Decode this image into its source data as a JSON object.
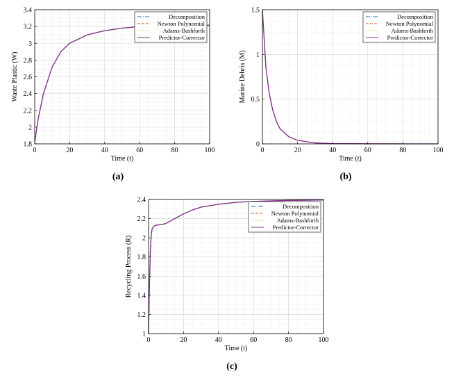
{
  "charts": [
    {
      "id": "a",
      "panel_label": "(a)",
      "xlabel": "Time (t)",
      "ylabel": "Waste Plastic (W)",
      "xticks": [
        "0",
        "20",
        "40",
        "60",
        "80",
        "100"
      ],
      "yticks": [
        "1.8",
        "2",
        "2.2",
        "2.4",
        "2.6",
        "2.8",
        "3",
        "3.2",
        "3.4"
      ]
    },
    {
      "id": "b",
      "panel_label": "(b)",
      "xlabel": "Time (t)",
      "ylabel": "Marine Debris (M)",
      "xticks": [
        "0",
        "20",
        "40",
        "60",
        "80",
        "100"
      ],
      "yticks": [
        "0",
        "0.5",
        "1",
        "1.5"
      ]
    },
    {
      "id": "c",
      "panel_label": "(c)",
      "xlabel": "Time (t)",
      "ylabel": "Recycling Process (R)",
      "xticks": [
        "0",
        "20",
        "40",
        "60",
        "80",
        "100"
      ],
      "yticks": [
        "1",
        "1.2",
        "1.4",
        "1.6",
        "1.8",
        "2",
        "2.2",
        "2.4"
      ]
    }
  ],
  "legend": [
    {
      "name": "Decomposition",
      "color": "#0072BD",
      "dash": "6,2,1,2"
    },
    {
      "name": "Newton Polynomial",
      "color": "#D95319",
      "dash": "4,2"
    },
    {
      "name": "Adams-Bashforth",
      "color": "#EDB120",
      "dash": "1,1.5"
    },
    {
      "name": "Predictor-Corrector",
      "color": "#7E2F8E",
      "dash": ""
    }
  ],
  "chart_data": [
    {
      "type": "line",
      "xlabel": "Time (t)",
      "ylabel": "Waste Plastic (W)",
      "xlim": [
        0,
        100
      ],
      "ylim": [
        1.8,
        3.4
      ],
      "grid": true,
      "legend_position": "top-right",
      "x": [
        0,
        2,
        5,
        10,
        15,
        20,
        30,
        40,
        50,
        60,
        70,
        80,
        90,
        100
      ],
      "series": [
        {
          "name": "Decomposition",
          "values": [
            1.82,
            2.1,
            2.4,
            2.72,
            2.9,
            3.0,
            3.1,
            3.15,
            3.18,
            3.2,
            3.205,
            3.21,
            3.212,
            3.215
          ]
        },
        {
          "name": "Newton Polynomial",
          "values": [
            1.82,
            2.1,
            2.4,
            2.72,
            2.9,
            3.0,
            3.1,
            3.15,
            3.18,
            3.2,
            3.205,
            3.21,
            3.212,
            3.215
          ]
        },
        {
          "name": "Adams-Bashforth",
          "values": [
            1.82,
            2.1,
            2.4,
            2.72,
            2.9,
            3.0,
            3.1,
            3.15,
            3.18,
            3.2,
            3.205,
            3.21,
            3.212,
            3.215
          ]
        },
        {
          "name": "Predictor-Corrector",
          "values": [
            1.82,
            2.1,
            2.4,
            2.72,
            2.9,
            3.0,
            3.1,
            3.15,
            3.18,
            3.2,
            3.205,
            3.21,
            3.212,
            3.215
          ]
        }
      ]
    },
    {
      "type": "line",
      "xlabel": "Time (t)",
      "ylabel": "Marine Debris (M)",
      "xlim": [
        0,
        100
      ],
      "ylim": [
        0,
        1.5
      ],
      "grid": true,
      "legend_position": "top-right",
      "x": [
        0,
        2,
        4,
        6,
        8,
        10,
        15,
        20,
        30,
        40,
        60,
        80,
        100
      ],
      "series": [
        {
          "name": "Decomposition",
          "values": [
            1.5,
            0.85,
            0.55,
            0.37,
            0.25,
            0.17,
            0.08,
            0.04,
            0.01,
            0.003,
            0.0005,
            0.0001,
            0.0
          ]
        },
        {
          "name": "Newton Polynomial",
          "values": [
            1.5,
            0.85,
            0.55,
            0.37,
            0.25,
            0.17,
            0.08,
            0.04,
            0.01,
            0.003,
            0.0005,
            0.0001,
            0.0
          ]
        },
        {
          "name": "Adams-Bashforth",
          "values": [
            1.5,
            0.85,
            0.55,
            0.37,
            0.25,
            0.17,
            0.08,
            0.04,
            0.01,
            0.003,
            0.0005,
            0.0001,
            0.0
          ]
        },
        {
          "name": "Predictor-Corrector",
          "values": [
            1.5,
            0.85,
            0.55,
            0.37,
            0.25,
            0.17,
            0.08,
            0.04,
            0.01,
            0.003,
            0.0005,
            0.0001,
            0.0
          ]
        }
      ]
    },
    {
      "type": "line",
      "xlabel": "Time (t)",
      "ylabel": "Recycling Process (R)",
      "xlim": [
        0,
        100
      ],
      "ylim": [
        1,
        2.4
      ],
      "grid": true,
      "legend_position": "top-right",
      "x": [
        0,
        0.5,
        1,
        1.5,
        2,
        3,
        4,
        6,
        8,
        10,
        12,
        15,
        20,
        25,
        30,
        40,
        50,
        60,
        70,
        80,
        90,
        100
      ],
      "series": [
        {
          "name": "Decomposition",
          "values": [
            1.0,
            1.5,
            1.85,
            2.02,
            2.09,
            2.12,
            2.13,
            2.135,
            2.14,
            2.15,
            2.17,
            2.2,
            2.25,
            2.29,
            2.32,
            2.35,
            2.37,
            2.38,
            2.385,
            2.39,
            2.392,
            2.394
          ]
        },
        {
          "name": "Newton Polynomial",
          "values": [
            1.0,
            1.5,
            1.85,
            2.02,
            2.09,
            2.12,
            2.13,
            2.135,
            2.14,
            2.15,
            2.17,
            2.2,
            2.25,
            2.29,
            2.32,
            2.35,
            2.37,
            2.38,
            2.385,
            2.39,
            2.392,
            2.394
          ]
        },
        {
          "name": "Adams-Bashforth",
          "values": [
            1.0,
            1.5,
            1.85,
            2.02,
            2.09,
            2.12,
            2.13,
            2.135,
            2.14,
            2.15,
            2.17,
            2.2,
            2.25,
            2.29,
            2.32,
            2.35,
            2.37,
            2.38,
            2.385,
            2.39,
            2.392,
            2.394
          ]
        },
        {
          "name": "Predictor-Corrector",
          "values": [
            1.0,
            1.5,
            1.85,
            2.02,
            2.09,
            2.12,
            2.13,
            2.135,
            2.14,
            2.15,
            2.17,
            2.2,
            2.25,
            2.29,
            2.32,
            2.35,
            2.37,
            2.38,
            2.385,
            2.39,
            2.392,
            2.394
          ]
        }
      ]
    }
  ]
}
